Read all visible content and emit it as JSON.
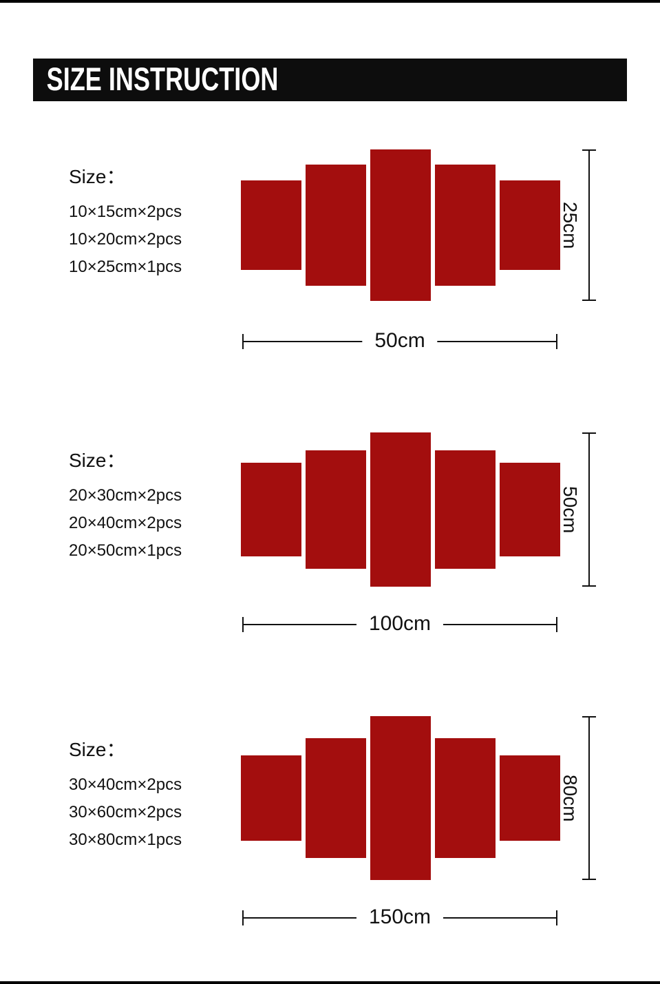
{
  "page": {
    "title": "SIZE INSTRUCTION"
  },
  "colors": {
    "panel_red": "#a30e0e",
    "header_bg": "#0d0d0d",
    "header_text": "#ffffff",
    "line": "#111111",
    "text": "#111111"
  },
  "sections": [
    {
      "size_label": "Size：",
      "pieces": [
        "10×15cm×2pcs",
        "10×20cm×2pcs",
        "10×25cm×1pcs"
      ],
      "height_label": "25cm",
      "width_label": "50cm"
    },
    {
      "size_label": "Size：",
      "pieces": [
        "20×30cm×2pcs",
        "20×40cm×2pcs",
        "20×50cm×1pcs"
      ],
      "height_label": "50cm",
      "width_label": "100cm"
    },
    {
      "size_label": "Size：",
      "pieces": [
        "30×40cm×2pcs",
        "30×60cm×2pcs",
        "30×80cm×1pcs"
      ],
      "height_label": "80cm",
      "width_label": "150cm"
    }
  ]
}
